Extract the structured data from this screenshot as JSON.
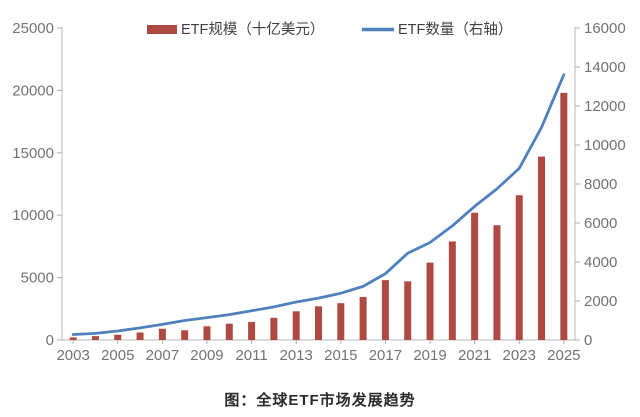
{
  "figure": {
    "caption": "图：全球ETF市场发展趋势"
  },
  "legend": {
    "bar": {
      "label": "ETF规模（十亿美元）"
    },
    "line": {
      "label": "ETF数量（右轴）"
    }
  },
  "colors": {
    "bar": "#AE4A42",
    "line": "#4F81BD",
    "axis_line": "#C6C6C6",
    "tick_mark": "#ADADAD",
    "axis_label": "#737373",
    "legend_text": "#3F3F3F",
    "caption_text": "#2B2B2B",
    "background": "#FFFFFF"
  },
  "chart_data": {
    "type": "bar",
    "subtype": "bar-line-combo",
    "title": "",
    "xlabel": "",
    "ylabel": "",
    "grid": false,
    "legend_position": "top",
    "categories": [
      "2003",
      "2004",
      "2005",
      "2006",
      "2007",
      "2008",
      "2009",
      "2010",
      "2011",
      "2012",
      "2013",
      "2014",
      "2015",
      "2016",
      "2017",
      "2018",
      "2019",
      "2020",
      "2021",
      "2022",
      "2023",
      "2024",
      "2025"
    ],
    "series": [
      {
        "name": "ETF规模（十亿美元）",
        "type": "bar",
        "axis": "left",
        "color": "#AE4A42",
        "values": [
          210,
          310,
          420,
          600,
          900,
          780,
          1100,
          1310,
          1450,
          1780,
          2300,
          2700,
          2950,
          3450,
          4800,
          4700,
          6200,
          7900,
          10200,
          9200,
          11600,
          14700,
          19800
        ]
      },
      {
        "name": "ETF数量（右轴）",
        "type": "line",
        "axis": "right",
        "color": "#4F81BD",
        "values": [
          280,
          340,
          460,
          620,
          800,
          1000,
          1150,
          1300,
          1500,
          1700,
          1950,
          2150,
          2400,
          2750,
          3400,
          4450,
          5000,
          5850,
          6850,
          7750,
          8800,
          10900,
          13600
        ]
      }
    ],
    "left_axis": {
      "min": 0,
      "max": 25000,
      "step": 5000,
      "tick_labels": [
        "0",
        "5000",
        "10000",
        "15000",
        "20000",
        "25000"
      ]
    },
    "right_axis": {
      "min": 0,
      "max": 16000,
      "step": 2000,
      "tick_labels": [
        "0",
        "2000",
        "4000",
        "6000",
        "8000",
        "10000",
        "12000",
        "14000",
        "16000"
      ]
    },
    "x_tick_labels": [
      "2003",
      "2005",
      "2007",
      "2009",
      "2011",
      "2013",
      "2015",
      "2017",
      "2019",
      "2021",
      "2023",
      "2025"
    ]
  }
}
